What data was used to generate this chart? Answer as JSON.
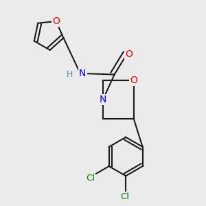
{
  "bg_color": "#ebebeb",
  "bond_color": "#1a1a1a",
  "N_color": "#0000ee",
  "O_color": "#ff0000",
  "Cl_color": "#008000",
  "H_color": "#558888",
  "line_width": 1.5,
  "font_size": 10,
  "figsize": [
    3.0,
    3.0
  ],
  "dpi": 100,
  "xlim": [
    0.0,
    1.0
  ],
  "ylim": [
    0.0,
    1.0
  ]
}
